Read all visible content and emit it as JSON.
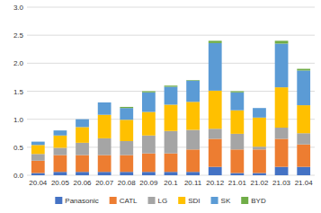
{
  "chart_data": {
    "type": "bar",
    "stacked": true,
    "categories": [
      "20.04",
      "20.05",
      "20.06",
      "20.07",
      "20.08",
      "20.09",
      "20.1",
      "20.11",
      "20.12",
      "21.01",
      "21.02",
      "21.03",
      "21.04"
    ],
    "series": [
      {
        "name": "Panasonic",
        "color": "#4472c4",
        "values": [
          0.04,
          0.06,
          0.06,
          0.06,
          0.06,
          0.06,
          0.06,
          0.06,
          0.15,
          0.04,
          0.04,
          0.15,
          0.15
        ]
      },
      {
        "name": "CATL",
        "color": "#ed7d31",
        "values": [
          0.22,
          0.3,
          0.3,
          0.3,
          0.3,
          0.33,
          0.33,
          0.4,
          0.5,
          0.42,
          0.42,
          0.5,
          0.4
        ]
      },
      {
        "name": "LG",
        "color": "#a5a5a5",
        "values": [
          0.12,
          0.13,
          0.22,
          0.3,
          0.25,
          0.32,
          0.4,
          0.35,
          0.18,
          0.28,
          0.05,
          0.2,
          0.2
        ]
      },
      {
        "name": "SDI",
        "color": "#ffc000",
        "values": [
          0.16,
          0.22,
          0.28,
          0.42,
          0.38,
          0.42,
          0.47,
          0.5,
          0.68,
          0.42,
          0.52,
          0.72,
          0.5
        ]
      },
      {
        "name": "SK",
        "color": "#5b9bd5",
        "values": [
          0.06,
          0.09,
          0.14,
          0.22,
          0.21,
          0.35,
          0.32,
          0.38,
          0.85,
          0.32,
          0.17,
          0.78,
          0.62
        ]
      },
      {
        "name": "BYD",
        "color": "#70ad47",
        "values": [
          0.0,
          0.0,
          0.0,
          0.0,
          0.02,
          0.02,
          0.02,
          0.01,
          0.04,
          0.02,
          0.0,
          0.05,
          0.03
        ]
      }
    ],
    "ylim": [
      0,
      3.0
    ],
    "yticks": [
      {
        "value": 0,
        "label": "0.0"
      },
      0.5,
      {
        "value": 1,
        "label": "1.0"
      },
      1.5,
      {
        "value": 2,
        "label": "2.0"
      },
      2.5,
      {
        "value": 3,
        "label": "3.0"
      }
    ],
    "grid": true,
    "legend": "bottom"
  }
}
